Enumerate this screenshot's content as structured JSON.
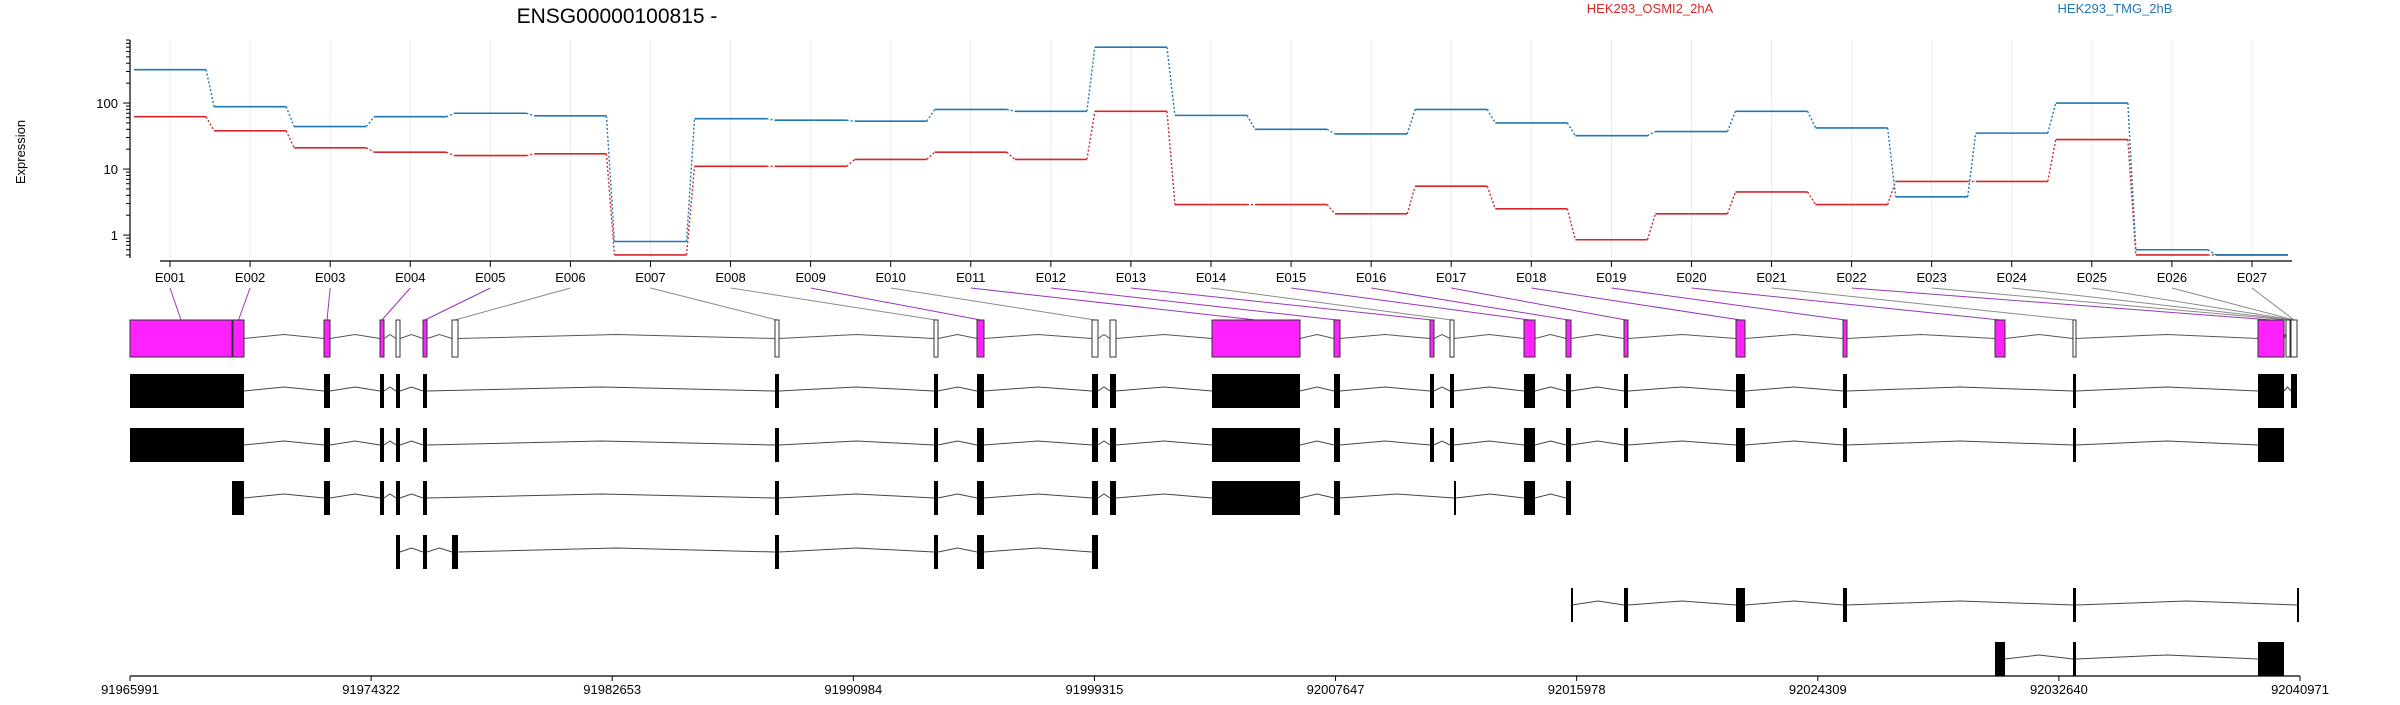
{
  "chart_data": {
    "type": "line",
    "title": "ENSG00000100815 -",
    "ylabel": "Expression",
    "yscale": "log",
    "yticks": [
      1,
      10,
      100
    ],
    "ytick_labels": [
      "1",
      "10",
      "100"
    ],
    "ylim": [
      0.45,
      900
    ],
    "grid": true,
    "legend": "top-right",
    "categories": [
      "E001",
      "E002",
      "E003",
      "E004",
      "E005",
      "E006",
      "E007",
      "E008",
      "E009",
      "E010",
      "E011",
      "E012",
      "E013",
      "E014",
      "E015",
      "E016",
      "E017",
      "E018",
      "E019",
      "E020",
      "E021",
      "E022",
      "E023",
      "E024",
      "E025",
      "E026",
      "E027"
    ],
    "series": [
      {
        "name": "HEK293_OSMI2_2hA",
        "color": "#d62728",
        "values": [
          62,
          38,
          21,
          18,
          16,
          17,
          0.5,
          11,
          11,
          14,
          18,
          14,
          75,
          2.9,
          2.9,
          2.1,
          5.5,
          2.5,
          0.85,
          2.1,
          4.5,
          2.9,
          6.5,
          6.5,
          28,
          0.5,
          0.5
        ]
      },
      {
        "name": "HEK293_TMG_2hB",
        "color": "#1f77b4",
        "values": [
          320,
          88,
          44,
          62,
          70,
          64,
          0.8,
          58,
          55,
          53,
          80,
          75,
          700,
          65,
          40,
          34,
          80,
          50,
          32,
          37,
          75,
          42,
          3.8,
          35,
          100,
          0.6,
          0.5
        ]
      }
    ],
    "genome_ticks": [
      "91965991",
      "91974322",
      "91982653",
      "91990984",
      "91999315",
      "92007647",
      "92015978",
      "92024309",
      "92032640",
      "92040971"
    ]
  },
  "colors": {
    "exon_highlight": "#ff22ff",
    "connector_main": "#9a35b8",
    "connector_other": "#8a8a8a",
    "transcript": "#000000"
  }
}
